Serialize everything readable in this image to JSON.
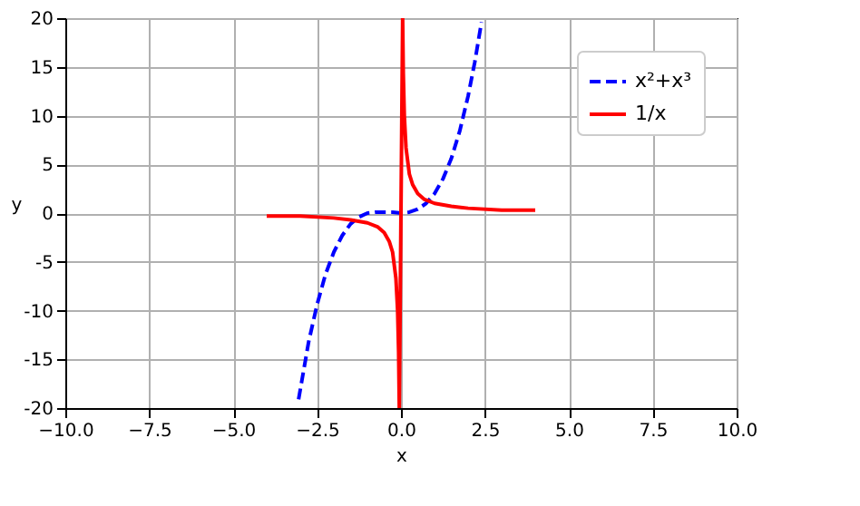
{
  "chart_data": {
    "type": "line",
    "xlabel": "x",
    "ylabel": "y",
    "xlim": [
      -10,
      10
    ],
    "ylim": [
      -20,
      20
    ],
    "xticks": [
      {
        "value": -10,
        "label": "−10.0"
      },
      {
        "value": -7.5,
        "label": "−7.5"
      },
      {
        "value": -5,
        "label": "−5.0"
      },
      {
        "value": -2.5,
        "label": "−2.5"
      },
      {
        "value": 0,
        "label": "0.0"
      },
      {
        "value": 2.5,
        "label": "2.5"
      },
      {
        "value": 5,
        "label": "5.0"
      },
      {
        "value": 7.5,
        "label": "7.5"
      },
      {
        "value": 10,
        "label": "10.0"
      }
    ],
    "yticks": [
      -20,
      -15,
      -10,
      -5,
      0,
      5,
      10,
      15,
      20
    ],
    "grid": true,
    "legend": "top right",
    "series": [
      {
        "name": "x²+x³",
        "color": "#0000ff",
        "line_style": "dashed",
        "x": [
          -3.05,
          -2.75,
          -2.5,
          -2.25,
          -2,
          -1.75,
          -1.5,
          -1.25,
          -1,
          -0.75,
          -0.5,
          -0.25,
          0,
          0.25,
          0.5,
          0.75,
          1,
          1.25,
          1.5,
          1.75,
          2,
          2.2,
          2.4
        ],
        "values": [
          -19.1,
          -13.2,
          -9.4,
          -6.3,
          -4,
          -2.3,
          -1.1,
          -0.4,
          0,
          0.1,
          0.1,
          0.1,
          0,
          0.1,
          0.4,
          1,
          2,
          3.5,
          5.6,
          8.4,
          12,
          15.5,
          19.6
        ]
      },
      {
        "name": "1/x",
        "color": "#ff0000",
        "line_style": "solid",
        "x": [
          -4,
          -3,
          -2,
          -1.5,
          -1,
          -0.7,
          -0.5,
          -0.35,
          -0.25,
          -0.15,
          -0.1,
          -0.07,
          -0.05,
          0.05,
          0.07,
          0.1,
          0.15,
          0.25,
          0.35,
          0.5,
          0.7,
          1,
          1.5,
          2,
          3,
          4
        ],
        "values": [
          -0.3,
          -0.3,
          -0.5,
          -0.7,
          -1,
          -1.4,
          -2,
          -2.9,
          -4,
          -6.7,
          -10,
          -14.3,
          -20,
          20,
          14.3,
          10,
          6.7,
          4,
          2.9,
          2,
          1.4,
          1,
          0.7,
          0.5,
          0.3,
          0.3
        ]
      }
    ]
  }
}
